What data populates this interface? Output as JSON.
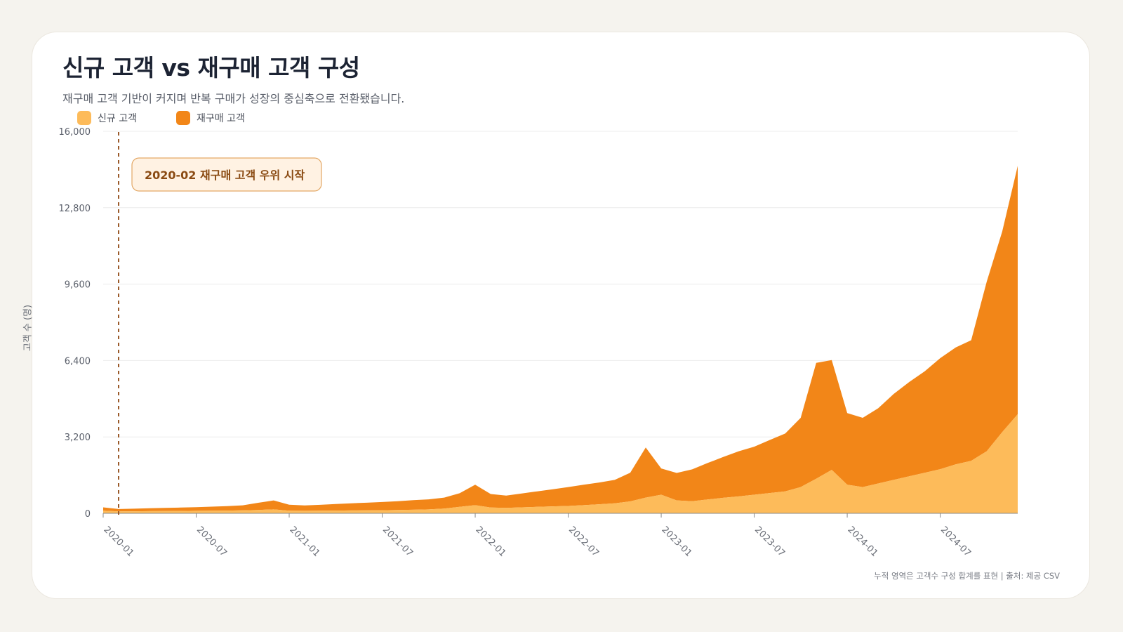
{
  "header": {
    "title": "신규 고객 vs 재구매 고객 구성",
    "subtitle": "재구매 고객 기반이 커지며 반복 구매가 성장의 중심축으로 전환됐습니다."
  },
  "legend": [
    {
      "label": "신규 고객",
      "color": "#fdbb5a"
    },
    {
      "label": "재구매 고객",
      "color": "#f28618"
    }
  ],
  "footnote": "누적 영역은 고객수 구성 합계를 표현 | 출처: 제공 CSV",
  "chart_data": {
    "type": "area",
    "stacked": true,
    "ylabel": "고객 수 (명)",
    "ylim": [
      0,
      16000
    ],
    "yticks": [
      0,
      3200,
      6400,
      9600,
      12800,
      16000
    ],
    "ytick_labels": [
      "0",
      "3,200",
      "6,400",
      "9,600",
      "12,800",
      "16,000"
    ],
    "xtick_labels": [
      "2020-01",
      "2020-07",
      "2021-01",
      "2021-07",
      "2022-01",
      "2022-07",
      "2023-01",
      "2023-07",
      "2024-01",
      "2024-07"
    ],
    "xtick_index": [
      0,
      6,
      12,
      18,
      24,
      30,
      36,
      42,
      48,
      54
    ],
    "grid": true,
    "legend_position": "top-left",
    "x": [
      "2020-01",
      "2020-02",
      "2020-03",
      "2020-04",
      "2020-05",
      "2020-06",
      "2020-07",
      "2020-08",
      "2020-09",
      "2020-10",
      "2020-11",
      "2020-12",
      "2021-01",
      "2021-02",
      "2021-03",
      "2021-04",
      "2021-05",
      "2021-06",
      "2021-07",
      "2021-08",
      "2021-09",
      "2021-10",
      "2021-11",
      "2021-12",
      "2022-01",
      "2022-02",
      "2022-03",
      "2022-04",
      "2022-05",
      "2022-06",
      "2022-07",
      "2022-08",
      "2022-09",
      "2022-10",
      "2022-11",
      "2022-12",
      "2023-01",
      "2023-02",
      "2023-03",
      "2023-04",
      "2023-05",
      "2023-06",
      "2023-07",
      "2023-08",
      "2023-09",
      "2023-10",
      "2023-11",
      "2023-12",
      "2024-01",
      "2024-02",
      "2024-03",
      "2024-04",
      "2024-05",
      "2024-06",
      "2024-07",
      "2024-08",
      "2024-09",
      "2024-10",
      "2024-11",
      "2024-12"
    ],
    "series": [
      {
        "name": "신규 고객",
        "color": "#fdbb5a",
        "values": [
          110,
          80,
          85,
          90,
          95,
          100,
          105,
          110,
          115,
          125,
          140,
          165,
          110,
          105,
          110,
          115,
          120,
          125,
          130,
          140,
          150,
          165,
          200,
          270,
          340,
          240,
          230,
          250,
          270,
          290,
          310,
          340,
          380,
          420,
          500,
          660,
          780,
          540,
          510,
          580,
          650,
          710,
          780,
          850,
          920,
          1100,
          1450,
          1820,
          1200,
          1100,
          1250,
          1400,
          1550,
          1700,
          1850,
          2050,
          2200,
          2600,
          3400,
          4150
        ]
      },
      {
        "name": "재구매 고객",
        "color": "#f28618",
        "values": [
          140,
          100,
          110,
          125,
          135,
          140,
          150,
          170,
          185,
          210,
          300,
          375,
          250,
          225,
          245,
          275,
          300,
          320,
          345,
          370,
          400,
          420,
          460,
          570,
          860,
          570,
          510,
          580,
          650,
          720,
          790,
          860,
          910,
          980,
          1200,
          2100,
          1100,
          1150,
          1330,
          1530,
          1710,
          1890,
          2010,
          2220,
          2420,
          2900,
          4850,
          4600,
          3000,
          2900,
          3150,
          3600,
          3950,
          4250,
          4650,
          4900,
          5050,
          7100,
          8400,
          10400
        ]
      }
    ]
  }
}
